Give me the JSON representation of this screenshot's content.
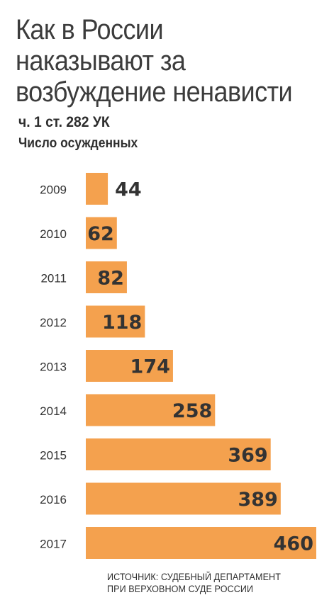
{
  "header": {
    "title": "Как в России наказывают за возбуждение ненависти",
    "subtitle": "ч. 1 ст. 282 УК",
    "measure": "Число осужденных"
  },
  "chart_data": {
    "type": "bar",
    "orientation": "horizontal",
    "title": "Как в России наказывают за возбуждение ненависти",
    "subtitle": "ч. 1 ст. 282 УК",
    "xlabel": "",
    "ylabel": "",
    "categories": [
      "2009",
      "2010",
      "2011",
      "2012",
      "2013",
      "2014",
      "2015",
      "2016",
      "2017"
    ],
    "values": [
      44,
      62,
      82,
      118,
      174,
      258,
      369,
      389,
      460
    ],
    "bar_color": "#f4a14e",
    "value_label_color": "#333333",
    "category_label_color": "#333333",
    "xlim": [
      0,
      460
    ],
    "grid": false,
    "data_labels": true
  },
  "source": {
    "line1": "ИСТОЧНИК: СУДЕБНЫЙ ДЕПАРТАМЕНТ",
    "line2": "ПРИ ВЕРХОВНОМ СУДЕ РОССИИ"
  }
}
